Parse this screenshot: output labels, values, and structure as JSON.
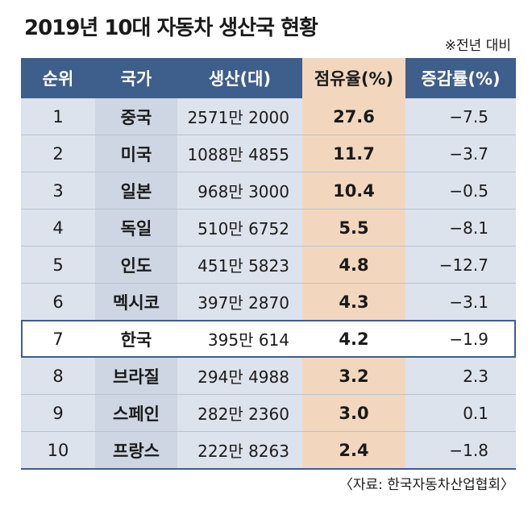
{
  "title": "2019년 10대 자동차 생산국 현황",
  "note": "※전년 대비",
  "source": "〈자료: 한국자동차산업협회〉",
  "highlight_country": "한국",
  "colors": {
    "header_bg": "#3e5e8c",
    "share_column_bg": "#f2d7be",
    "row_bg": "#dde3ec",
    "country_bg": "#cdd6e2"
  },
  "chart_data": {
    "type": "table",
    "columns": [
      "순위",
      "국가",
      "생산(대)",
      "점유율(%)",
      "증감률(%)"
    ],
    "rows": [
      {
        "rank": "1",
        "country": "중국",
        "production": "2571만 2000",
        "share": "27.6",
        "change": "−7.5"
      },
      {
        "rank": "2",
        "country": "미국",
        "production": "1088만 4855",
        "share": "11.7",
        "change": "−3.7"
      },
      {
        "rank": "3",
        "country": "일본",
        "production": "968만 3000",
        "share": "10.4",
        "change": "−0.5"
      },
      {
        "rank": "4",
        "country": "독일",
        "production": "510만 6752",
        "share": "5.5",
        "change": "−8.1"
      },
      {
        "rank": "5",
        "country": "인도",
        "production": "451만 5823",
        "share": "4.8",
        "change": "−12.7"
      },
      {
        "rank": "6",
        "country": "멕시코",
        "production": "397만 2870",
        "share": "4.3",
        "change": "−3.1"
      },
      {
        "rank": "7",
        "country": "한국",
        "production": "395만 614",
        "share": "4.2",
        "change": "−1.9"
      },
      {
        "rank": "8",
        "country": "브라질",
        "production": "294만 4988",
        "share": "3.2",
        "change": "2.3"
      },
      {
        "rank": "9",
        "country": "스페인",
        "production": "282만 2360",
        "share": "3.0",
        "change": "0.1"
      },
      {
        "rank": "10",
        "country": "프랑스",
        "production": "222만 8263",
        "share": "2.4",
        "change": "−1.8"
      }
    ]
  }
}
